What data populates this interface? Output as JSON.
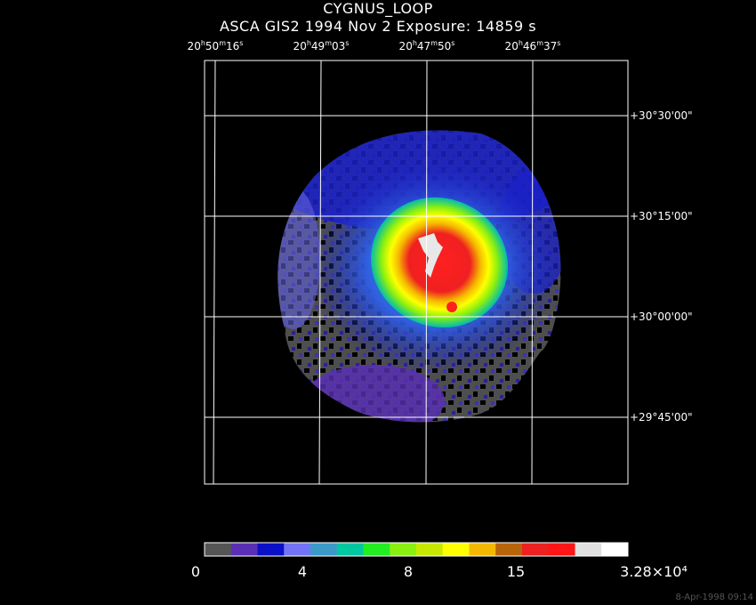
{
  "header": {
    "object": "CYGNUS_LOOP",
    "observation": "ASCA GIS2   1994 Nov  2    Exposure: 14859 s"
  },
  "ra_ticks": [
    {
      "h": "20",
      "m": "50",
      "s": "16"
    },
    {
      "h": "20",
      "m": "49",
      "s": "03"
    },
    {
      "h": "20",
      "m": "47",
      "s": "50"
    },
    {
      "h": "20",
      "m": "46",
      "s": "37"
    }
  ],
  "dec_ticks": [
    {
      "label": "+30°30'00\""
    },
    {
      "label": "+30°15'00\""
    },
    {
      "label": "+30°00'00\""
    },
    {
      "label": "+29°45'00\""
    }
  ],
  "colorbar": {
    "colors": [
      "#555555",
      "#5a2fb5",
      "#0a10c8",
      "#7373f8",
      "#3b9ac8",
      "#00c8a0",
      "#22ee22",
      "#8af010",
      "#c8e800",
      "#ffff00",
      "#f5b800",
      "#b8640a",
      "#ee2020",
      "#ff1515",
      "#e0e0e0",
      "#ffffff"
    ],
    "labels": [
      "0",
      "4",
      "8",
      "15",
      "3.28×10⁴"
    ]
  },
  "footer": "8-Apr-1998 09:14"
}
